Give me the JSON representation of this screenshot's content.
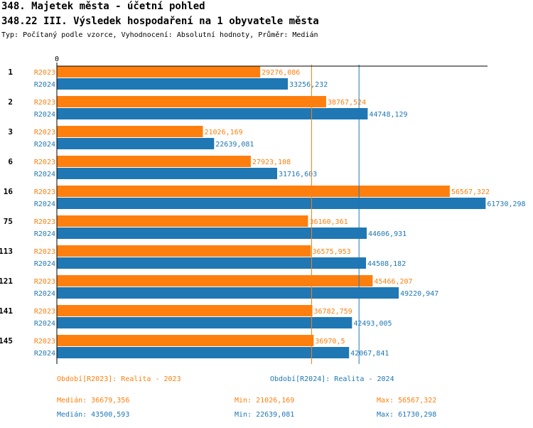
{
  "header": {
    "title": "348. Majetek města - účetní pohled",
    "subtitle": "348.22 III. Výsledek hospodaření na 1 obyvatele města",
    "type_line": "Typ: Počítaný podle vzorce, Vyhodnocení: Absolutní hodnoty, Průměr: Medián"
  },
  "chart_data": {
    "type": "bar",
    "orientation": "horizontal",
    "axis_zero_label": "0",
    "xlim": [
      0,
      62000
    ],
    "categories": [
      "1",
      "2",
      "3",
      "6",
      "16",
      "75",
      "113",
      "121",
      "141",
      "145"
    ],
    "series": [
      {
        "name": "R2023",
        "color": "#ff7f0e",
        "values": [
          29276.086,
          38767.524,
          21026.169,
          27923.108,
          56567.322,
          36160.361,
          36575.953,
          45466.207,
          36782.759,
          36970.5
        ],
        "labels": [
          "29276,086",
          "38767,524",
          "21026,169",
          "27923,108",
          "56567,322",
          "36160,361",
          "36575,953",
          "45466,207",
          "36782,759",
          "36970,5"
        ],
        "median": 36679.356
      },
      {
        "name": "R2024",
        "color": "#1f77b4",
        "values": [
          33256.232,
          44748.129,
          22639.081,
          31716.603,
          61730.298,
          44606.931,
          44508.182,
          49220.947,
          42493.005,
          42067.841
        ],
        "labels": [
          "33256,232",
          "44748,129",
          "22639,081",
          "31716,603",
          "61730,298",
          "44606,931",
          "44508,182",
          "49220,947",
          "42493,005",
          "42067,841"
        ],
        "median": 43500.593
      }
    ]
  },
  "legend": {
    "r2023": {
      "period": "Období[R2023]: Realita - 2023",
      "median": "Medián: 36679,356",
      "min": "Min: 21026,169",
      "max": "Max: 56567,322"
    },
    "r2024": {
      "period": "Období[R2024]: Realita - 2024",
      "median": "Medián: 43500,593",
      "min": "Min: 22639,081",
      "max": "Max: 61730,298"
    }
  }
}
